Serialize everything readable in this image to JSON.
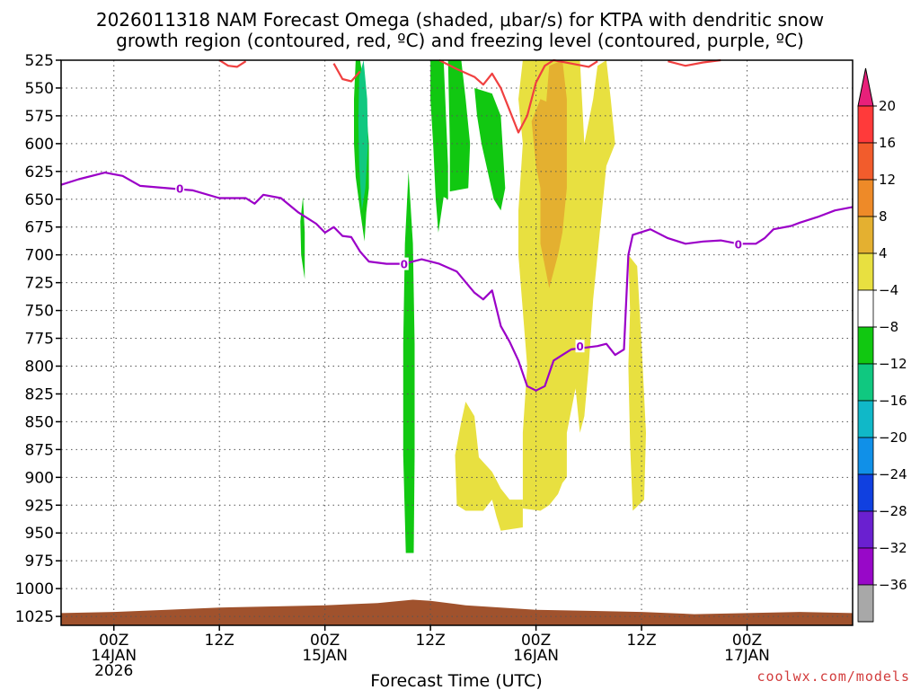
{
  "chart_data": {
    "type": "time-height",
    "title_line1": "2026011318 NAM Forecast Omega (shaded, μbar/s) for KTPA with dendritic snow",
    "title_line2": "growth region (contoured, red, ºC) and freezing level (contoured, purple, ºC)",
    "xlabel": "Forecast Time (UTC)",
    "credit": "coolwx.com/models",
    "x_range_hours": [
      -6,
      84
    ],
    "y_pressure_levels": [
      525,
      550,
      575,
      600,
      625,
      650,
      675,
      700,
      725,
      750,
      775,
      800,
      825,
      850,
      875,
      900,
      925,
      950,
      975,
      1000,
      1025
    ],
    "y_range_mb": [
      525,
      1033
    ],
    "x_ticks": [
      {
        "hour": 0,
        "line1": "00Z",
        "line2": "14JAN",
        "line3": "2026"
      },
      {
        "hour": 12,
        "line1": "12Z",
        "line2": "",
        "line3": ""
      },
      {
        "hour": 24,
        "line1": "00Z",
        "line2": "15JAN",
        "line3": ""
      },
      {
        "hour": 36,
        "line1": "12Z",
        "line2": "",
        "line3": ""
      },
      {
        "hour": 48,
        "line1": "00Z",
        "line2": "16JAN",
        "line3": ""
      },
      {
        "hour": 60,
        "line1": "12Z",
        "line2": "",
        "line3": ""
      },
      {
        "hour": 72,
        "line1": "00Z",
        "line2": "17JAN",
        "line3": ""
      }
    ],
    "colorbar": {
      "labels": [
        "20",
        "16",
        "12",
        "8",
        "4",
        "−4",
        "−8",
        "−12",
        "−16",
        "−20",
        "−24",
        "−28",
        "−32",
        "−36"
      ],
      "colors_top_to_bottom": [
        "#ff3a3a",
        "#f25c2c",
        "#ee8a28",
        "#e4b030",
        "#e8e040",
        "#ffffff",
        "#11c811",
        "#10c880",
        "#10b8c8",
        "#1090e8",
        "#1040e0",
        "#6a20d0",
        "#9808c8",
        "#a8a8a8"
      ],
      "top_arrow_color": "#e8207a",
      "bottom_arrow_color": "#000000"
    },
    "freezing_level": {
      "label": "0",
      "color": "#9b00c8",
      "points": [
        [
          -6,
          637
        ],
        [
          -4,
          632
        ],
        [
          -1,
          626
        ],
        [
          1,
          629
        ],
        [
          3,
          638
        ],
        [
          6,
          640
        ],
        [
          9,
          642
        ],
        [
          12,
          649
        ],
        [
          15,
          649
        ],
        [
          16,
          654
        ],
        [
          17,
          646
        ],
        [
          19,
          649
        ],
        [
          21,
          662
        ],
        [
          23,
          672
        ],
        [
          24,
          680
        ],
        [
          25,
          675
        ],
        [
          26,
          683
        ],
        [
          27,
          684
        ],
        [
          28,
          697
        ],
        [
          29,
          706
        ],
        [
          31,
          708
        ],
        [
          33,
          708
        ],
        [
          35,
          704
        ],
        [
          37,
          708
        ],
        [
          39,
          715
        ],
        [
          41,
          734
        ],
        [
          42,
          740
        ],
        [
          43,
          732
        ],
        [
          44,
          764
        ],
        [
          45,
          778
        ],
        [
          46,
          795
        ],
        [
          47,
          818
        ],
        [
          48,
          822
        ],
        [
          49,
          818
        ],
        [
          50,
          795
        ],
        [
          51,
          790
        ],
        [
          52,
          785
        ],
        [
          53,
          784
        ],
        [
          55,
          782
        ],
        [
          56,
          780
        ],
        [
          57,
          790
        ],
        [
          58,
          785
        ],
        [
          58.5,
          700
        ],
        [
          59,
          682
        ],
        [
          61,
          677
        ],
        [
          63,
          685
        ],
        [
          65,
          690
        ],
        [
          67,
          688
        ],
        [
          69,
          687
        ],
        [
          71,
          690
        ],
        [
          73,
          690
        ],
        [
          74,
          685
        ],
        [
          75,
          677
        ],
        [
          77,
          674
        ],
        [
          78,
          671
        ],
        [
          80,
          666
        ],
        [
          82,
          660
        ],
        [
          84,
          657
        ]
      ]
    },
    "dgz_lines": [
      {
        "color": "#f04040",
        "points": [
          [
            12,
            525
          ],
          [
            13,
            530
          ],
          [
            14,
            531
          ],
          [
            15,
            526
          ]
        ]
      },
      {
        "color": "#f04040",
        "points": [
          [
            25,
            528
          ],
          [
            26,
            542
          ],
          [
            27,
            544
          ],
          [
            28,
            535
          ]
        ]
      },
      {
        "color": "#f04040",
        "points": [
          [
            37,
            525
          ],
          [
            39,
            533
          ],
          [
            41,
            540
          ],
          [
            42,
            547
          ],
          [
            43,
            537
          ],
          [
            44,
            550
          ],
          [
            45,
            570
          ],
          [
            46,
            590
          ],
          [
            47,
            575
          ],
          [
            48,
            545
          ],
          [
            49,
            530
          ],
          [
            50,
            525
          ],
          [
            52,
            528
          ],
          [
            54,
            531
          ],
          [
            55,
            526
          ]
        ]
      },
      {
        "color": "#f04040",
        "points": [
          [
            63,
            526
          ],
          [
            65,
            530
          ],
          [
            67,
            527
          ],
          [
            69,
            525
          ]
        ]
      }
    ],
    "omega_regions": [
      {
        "value": "-8 to -4",
        "color": "#11c811",
        "points": [
          [
            28,
            525
          ],
          [
            28.5,
            550
          ],
          [
            29,
            600
          ],
          [
            29,
            640
          ],
          [
            28.7,
            662
          ],
          [
            28.5,
            688
          ],
          [
            28.0,
            660
          ],
          [
            27.5,
            630
          ],
          [
            27.3,
            600
          ],
          [
            27.3,
            560
          ],
          [
            27.5,
            525
          ]
        ]
      },
      {
        "value": "-12 to -8",
        "color": "#10c880",
        "points": [
          [
            28.4,
            525
          ],
          [
            28.8,
            560
          ],
          [
            28.9,
            600
          ],
          [
            28.6,
            640
          ],
          [
            28.2,
            660
          ],
          [
            27.9,
            620
          ],
          [
            27.8,
            580
          ],
          [
            27.9,
            540
          ]
        ]
      },
      {
        "value": "-8 to -4",
        "color": "#11c811",
        "points": [
          [
            21.5,
            648
          ],
          [
            21.7,
            680
          ],
          [
            21.7,
            722
          ],
          [
            21.3,
            700
          ],
          [
            21.2,
            670
          ]
        ]
      },
      {
        "value": "-8 to -4",
        "color": "#11c811",
        "points": [
          [
            33.5,
            625
          ],
          [
            34,
            690
          ],
          [
            34.2,
            780
          ],
          [
            34.2,
            880
          ],
          [
            34.1,
            968
          ],
          [
            33.2,
            968
          ],
          [
            32.9,
            880
          ],
          [
            32.9,
            780
          ],
          [
            33.1,
            690
          ]
        ]
      },
      {
        "value": "-8 to -4",
        "color": "#11c811",
        "points": [
          [
            36,
            525
          ],
          [
            37.5,
            525
          ],
          [
            38,
            620
          ],
          [
            38,
            650
          ],
          [
            37.5,
            648
          ],
          [
            36.9,
            680
          ],
          [
            36.6,
            650
          ],
          [
            36.3,
            600
          ],
          [
            36,
            560
          ]
        ]
      },
      {
        "value": "-8 to -4",
        "color": "#11c811",
        "points": [
          [
            38,
            525
          ],
          [
            39.5,
            525
          ],
          [
            40,
            560
          ],
          [
            40.5,
            600
          ],
          [
            40.3,
            640
          ],
          [
            38.2,
            643
          ],
          [
            38.2,
            600
          ]
        ]
      },
      {
        "value": "-8 to -4",
        "color": "#11c811",
        "points": [
          [
            41,
            550
          ],
          [
            43,
            555
          ],
          [
            44,
            575
          ],
          [
            44.5,
            640
          ],
          [
            44,
            660
          ],
          [
            43.2,
            650
          ],
          [
            42.5,
            625
          ],
          [
            41.8,
            600
          ],
          [
            41.3,
            575
          ]
        ]
      },
      {
        "value": "4 to 8",
        "color": "#e8e040",
        "points": [
          [
            46.5,
            525
          ],
          [
            53,
            525
          ],
          [
            53.5,
            600
          ],
          [
            54.5,
            560
          ],
          [
            55,
            530
          ],
          [
            56,
            525
          ],
          [
            56.5,
            560
          ],
          [
            57,
            600
          ],
          [
            56,
            620
          ],
          [
            55.5,
            660
          ],
          [
            55,
            700
          ],
          [
            54.5,
            740
          ],
          [
            54,
            800
          ],
          [
            53.5,
            845
          ],
          [
            53,
            860
          ],
          [
            52.5,
            820
          ],
          [
            51.5,
            860
          ],
          [
            51.5,
            900
          ],
          [
            51,
            905
          ],
          [
            50.5,
            915
          ],
          [
            49.5,
            925
          ],
          [
            48.5,
            930
          ],
          [
            46.5,
            928
          ],
          [
            46.5,
            860
          ],
          [
            47,
            800
          ],
          [
            46.5,
            750
          ],
          [
            46,
            700
          ],
          [
            46,
            660
          ],
          [
            46.5,
            600
          ],
          [
            46,
            560
          ]
        ]
      },
      {
        "value": "8 to 12",
        "color": "#e4b030",
        "points": [
          [
            48.5,
            560
          ],
          [
            50,
            565
          ],
          [
            50,
            600
          ],
          [
            50,
            640
          ],
          [
            49,
            660
          ],
          [
            48,
            620
          ],
          [
            47.5,
            580
          ]
        ]
      },
      {
        "value": "8 to 12",
        "color": "#e4b030",
        "points": [
          [
            49.5,
            530
          ],
          [
            51,
            525
          ],
          [
            51.5,
            560
          ],
          [
            51.5,
            640
          ],
          [
            51,
            680
          ],
          [
            50.5,
            700
          ],
          [
            49.5,
            730
          ],
          [
            48.5,
            690
          ],
          [
            48.5,
            640
          ],
          [
            49,
            600
          ],
          [
            49.2,
            560
          ]
        ]
      },
      {
        "value": "4 to 8",
        "color": "#e8e040",
        "points": [
          [
            40,
            832
          ],
          [
            41,
            845
          ],
          [
            41.5,
            882
          ],
          [
            43,
            895
          ],
          [
            44,
            910
          ],
          [
            45,
            920
          ],
          [
            46.5,
            920
          ],
          [
            46.5,
            945
          ],
          [
            44,
            948
          ],
          [
            43.5,
            935
          ],
          [
            43,
            920
          ],
          [
            42,
            930
          ],
          [
            40,
            930
          ],
          [
            39,
            925
          ],
          [
            38.8,
            880
          ],
          [
            39.5,
            850
          ]
        ]
      },
      {
        "value": "4 to 8",
        "color": "#e8e040",
        "points": [
          [
            58.5,
            700
          ],
          [
            59.5,
            710
          ],
          [
            60,
            780
          ],
          [
            60.5,
            860
          ],
          [
            60.3,
            920
          ],
          [
            59,
            930
          ],
          [
            58.7,
            870
          ],
          [
            58.5,
            800
          ],
          [
            58.7,
            750
          ]
        ]
      }
    ],
    "terrain": {
      "color": "#a0522d",
      "top_points": [
        [
          -6,
          1022
        ],
        [
          0,
          1021
        ],
        [
          6,
          1019
        ],
        [
          12,
          1017
        ],
        [
          18,
          1016
        ],
        [
          24,
          1015
        ],
        [
          30,
          1013
        ],
        [
          34,
          1010
        ],
        [
          36,
          1011
        ],
        [
          40,
          1015
        ],
        [
          44,
          1017
        ],
        [
          48,
          1019
        ],
        [
          54,
          1020
        ],
        [
          60,
          1021
        ],
        [
          66,
          1023
        ],
        [
          72,
          1022
        ],
        [
          78,
          1021
        ],
        [
          84,
          1022
        ]
      ]
    }
  }
}
